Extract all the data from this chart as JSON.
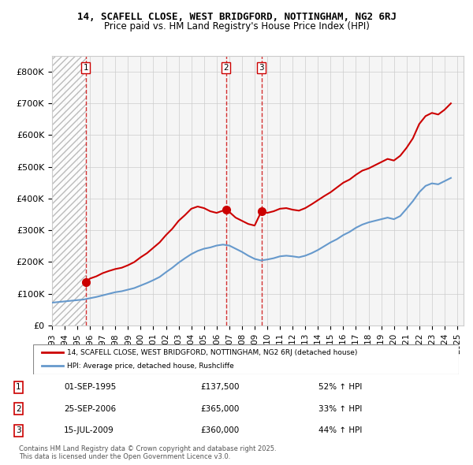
{
  "title": "14, SCAFELL CLOSE, WEST BRIDGFORD, NOTTINGHAM, NG2 6RJ",
  "subtitle": "Price paid vs. HM Land Registry's House Price Index (HPI)",
  "legend_line1": "14, SCAFELL CLOSE, WEST BRIDGFORD, NOTTINGHAM, NG2 6RJ (detached house)",
  "legend_line2": "HPI: Average price, detached house, Rushcliffe",
  "transactions": [
    {
      "num": 1,
      "date": "01-SEP-1995",
      "price": 137500,
      "change": "52% ↑ HPI",
      "date_dec": 1995.67
    },
    {
      "num": 2,
      "date": "25-SEP-2006",
      "price": 365000,
      "change": "33% ↑ HPI",
      "date_dec": 2006.73
    },
    {
      "num": 3,
      "date": "15-JUL-2009",
      "price": 360000,
      "change": "44% ↑ HPI",
      "date_dec": 2009.54
    }
  ],
  "copyright": "Contains HM Land Registry data © Crown copyright and database right 2025.\nThis data is licensed under the Open Government Licence v3.0.",
  "ylim": [
    0,
    850000
  ],
  "xlim_start": 1993.0,
  "xlim_end": 2025.5,
  "yticks": [
    0,
    100000,
    200000,
    300000,
    400000,
    500000,
    600000,
    700000,
    800000
  ],
  "ytick_labels": [
    "£0",
    "£100K",
    "£200K",
    "£300K",
    "£400K",
    "£500K",
    "£600K",
    "£700K",
    "£800K"
  ],
  "xticks": [
    1993,
    1994,
    1995,
    1996,
    1997,
    1998,
    1999,
    2000,
    2001,
    2002,
    2003,
    2004,
    2005,
    2006,
    2007,
    2008,
    2009,
    2010,
    2011,
    2012,
    2013,
    2014,
    2015,
    2016,
    2017,
    2018,
    2019,
    2020,
    2021,
    2022,
    2023,
    2024,
    2025
  ],
  "red_line_color": "#cc0000",
  "blue_line_color": "#6699cc",
  "marker_color": "#cc0000",
  "dashed_line_color": "#cc0000",
  "hatch_color": "#cccccc",
  "grid_color": "#cccccc",
  "background_color": "#f5f5f5",
  "red_line_data_x": [
    1995.67,
    1996.0,
    1996.5,
    1997.0,
    1997.5,
    1998.0,
    1998.5,
    1999.0,
    1999.5,
    2000.0,
    2000.5,
    2001.0,
    2001.5,
    2002.0,
    2002.5,
    2003.0,
    2003.5,
    2004.0,
    2004.5,
    2005.0,
    2005.5,
    2006.0,
    2006.5,
    2006.73,
    2007.0,
    2007.5,
    2008.0,
    2008.5,
    2009.0,
    2009.54,
    2010.0,
    2010.5,
    2011.0,
    2011.5,
    2012.0,
    2012.5,
    2013.0,
    2013.5,
    2014.0,
    2014.5,
    2015.0,
    2015.5,
    2016.0,
    2016.5,
    2017.0,
    2017.5,
    2018.0,
    2018.5,
    2019.0,
    2019.5,
    2020.0,
    2020.5,
    2021.0,
    2021.5,
    2022.0,
    2022.5,
    2023.0,
    2023.5,
    2024.0,
    2024.5
  ],
  "red_line_data_y": [
    137500,
    148000,
    155000,
    165000,
    172000,
    178000,
    182000,
    190000,
    200000,
    215000,
    228000,
    245000,
    262000,
    285000,
    305000,
    330000,
    348000,
    368000,
    375000,
    370000,
    360000,
    355000,
    362000,
    365000,
    358000,
    340000,
    330000,
    320000,
    315000,
    360000,
    355000,
    360000,
    368000,
    370000,
    365000,
    362000,
    370000,
    382000,
    395000,
    408000,
    420000,
    435000,
    450000,
    460000,
    475000,
    488000,
    495000,
    505000,
    515000,
    525000,
    520000,
    535000,
    560000,
    590000,
    635000,
    660000,
    670000,
    665000,
    680000,
    700000
  ],
  "blue_line_data_x": [
    1993.0,
    1993.5,
    1994.0,
    1994.5,
    1995.0,
    1995.5,
    1996.0,
    1996.5,
    1997.0,
    1997.5,
    1998.0,
    1998.5,
    1999.0,
    1999.5,
    2000.0,
    2000.5,
    2001.0,
    2001.5,
    2002.0,
    2002.5,
    2003.0,
    2003.5,
    2004.0,
    2004.5,
    2005.0,
    2005.5,
    2006.0,
    2006.5,
    2007.0,
    2007.5,
    2008.0,
    2008.5,
    2009.0,
    2009.5,
    2010.0,
    2010.5,
    2011.0,
    2011.5,
    2012.0,
    2012.5,
    2013.0,
    2013.5,
    2014.0,
    2014.5,
    2015.0,
    2015.5,
    2016.0,
    2016.5,
    2017.0,
    2017.5,
    2018.0,
    2018.5,
    2019.0,
    2019.5,
    2020.0,
    2020.5,
    2021.0,
    2021.5,
    2022.0,
    2022.5,
    2023.0,
    2023.5,
    2024.0,
    2024.5
  ],
  "blue_line_data_y": [
    72000,
    74000,
    76000,
    78000,
    80000,
    82000,
    86000,
    90000,
    95000,
    100000,
    105000,
    108000,
    113000,
    118000,
    126000,
    134000,
    143000,
    153000,
    168000,
    182000,
    198000,
    212000,
    225000,
    235000,
    242000,
    246000,
    252000,
    255000,
    252000,
    242000,
    232000,
    220000,
    210000,
    205000,
    208000,
    212000,
    218000,
    220000,
    218000,
    215000,
    220000,
    228000,
    238000,
    250000,
    262000,
    272000,
    285000,
    295000,
    308000,
    318000,
    325000,
    330000,
    335000,
    340000,
    335000,
    345000,
    368000,
    392000,
    420000,
    440000,
    448000,
    445000,
    455000,
    465000
  ]
}
